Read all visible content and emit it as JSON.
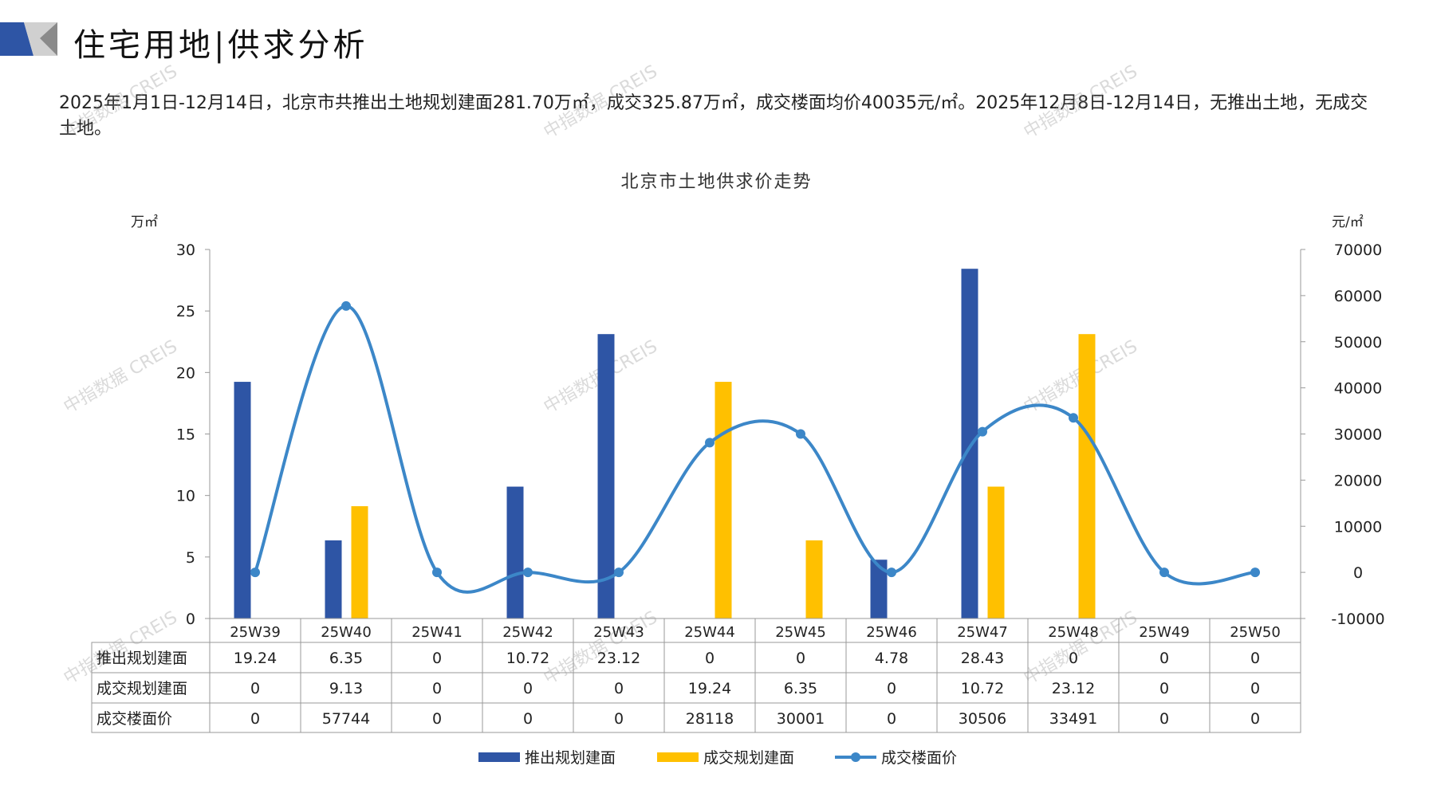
{
  "header": {
    "title": "住宅用地|供求分析"
  },
  "summary": {
    "text": "2025年1月1日-12月14日，北京市共推出土地规划建面281.70万㎡，成交325.87万㎡，成交楼面均价40035元/㎡。2025年12月8日-12月14日，无推出土地，无成交土地。"
  },
  "watermark": "中指数据 CREIS",
  "colors": {
    "supply": "#2E55A5",
    "deal": "#FFC000",
    "price": "#3C87C8",
    "grid": "#999999"
  },
  "chart_data": {
    "type": "bar+line",
    "title": "北京市土地供求价走势",
    "left_unit": "万㎡",
    "right_unit": "元/㎡",
    "categories": [
      "25W39",
      "25W40",
      "25W41",
      "25W42",
      "25W43",
      "25W44",
      "25W45",
      "25W46",
      "25W47",
      "25W48",
      "25W49",
      "25W50"
    ],
    "series": [
      {
        "name": "推出规划建面",
        "type": "bar",
        "axis": "left",
        "values": [
          19.24,
          6.35,
          0,
          10.72,
          23.12,
          0,
          0,
          4.78,
          28.43,
          0,
          0,
          0
        ],
        "labels": [
          "19.24",
          "6.35",
          "0",
          "10.72",
          "23.12",
          "0",
          "0",
          "4.78",
          "28.43",
          "0",
          "0",
          "0"
        ]
      },
      {
        "name": "成交规划建面",
        "type": "bar",
        "axis": "left",
        "values": [
          0,
          9.13,
          0,
          0,
          0,
          19.24,
          6.35,
          0,
          10.72,
          23.12,
          0,
          0
        ],
        "labels": [
          "0",
          "9.13",
          "0",
          "0",
          "0",
          "19.24",
          "6.35",
          "0",
          "10.72",
          "23.12",
          "0",
          "0"
        ]
      },
      {
        "name": "成交楼面价",
        "type": "line",
        "axis": "right",
        "values": [
          0,
          57744,
          0,
          0,
          0,
          28118,
          30001,
          0,
          30506,
          33491,
          0,
          0
        ],
        "labels": [
          "0",
          "57744",
          "0",
          "0",
          "0",
          "28118",
          "30001",
          "0",
          "30506",
          "33491",
          "0",
          "0"
        ]
      }
    ],
    "left_axis": {
      "ylim": [
        0,
        30
      ],
      "ticks": [
        "0",
        "5",
        "10",
        "15",
        "20",
        "25",
        "30"
      ]
    },
    "right_axis": {
      "ylim": [
        -10000,
        70000
      ],
      "ticks": [
        "-10000",
        "0",
        "10000",
        "20000",
        "30000",
        "40000",
        "50000",
        "60000",
        "70000"
      ]
    },
    "legend": "bottom",
    "data_table": true
  }
}
